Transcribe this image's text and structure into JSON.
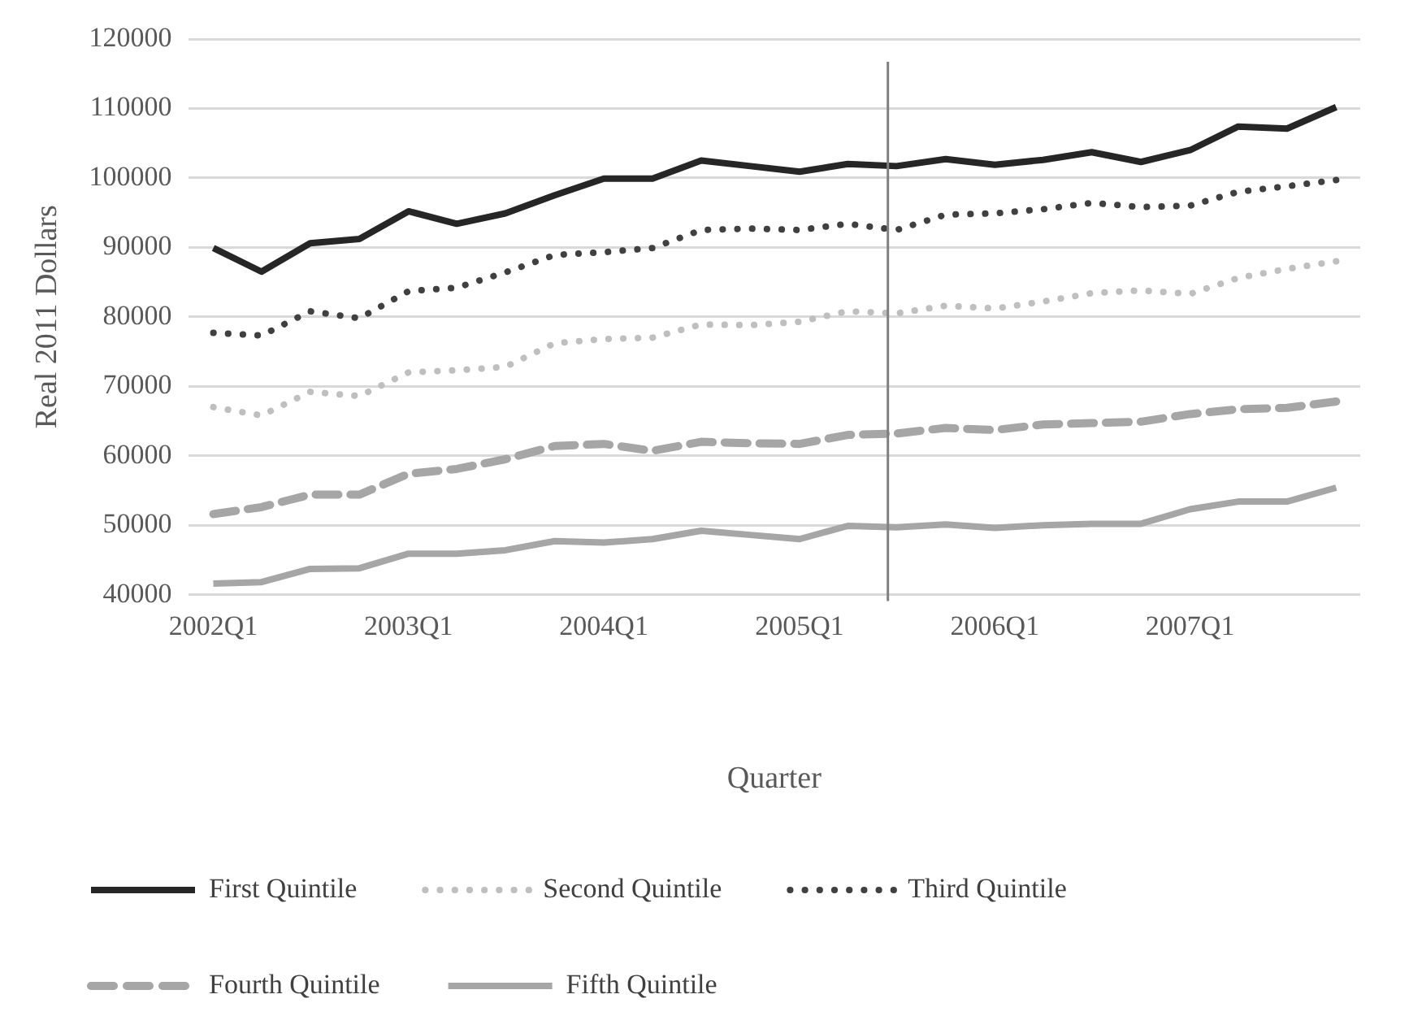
{
  "chart_data": {
    "type": "line",
    "xlabel": "Quarter",
    "ylabel": "Real 2011 Dollars",
    "x": [
      "2002-01",
      "2002-04",
      "2002-07",
      "2002-10",
      "2003-01",
      "2003-04",
      "2003-07",
      "2003-10",
      "2004-01",
      "2004-04",
      "2004-07",
      "2004-10",
      "2005-01",
      "2005-04",
      "2005-07",
      "2005-10",
      "2006-01",
      "2006-04",
      "2006-07",
      "2006-10",
      "2007-01",
      "2007-04",
      "2007-07",
      "2007-10"
    ],
    "xlim": [
      "2001-11-15",
      "2007-11-15"
    ],
    "xticks": [
      {
        "value": "2002-01",
        "label": "2002Q1"
      },
      {
        "value": "2003-01",
        "label": "2003Q1"
      },
      {
        "value": "2004-01",
        "label": "2004Q1"
      },
      {
        "value": "2005-01",
        "label": "2005Q1"
      },
      {
        "value": "2006-01",
        "label": "2006Q1"
      },
      {
        "value": "2007-01",
        "label": "2007Q1"
      }
    ],
    "ylim": [
      40000,
      120000
    ],
    "yticks": [
      40000,
      50000,
      60000,
      70000,
      80000,
      90000,
      100000,
      110000,
      120000
    ],
    "grid": "y",
    "legend": "bottom",
    "marker": "none",
    "series": [
      {
        "name": "First Quintile",
        "color": "#262626",
        "line_style": "solid",
        "values": [
          89900,
          86500,
          90600,
          91200,
          95200,
          93400,
          94900,
          97500,
          99900,
          99900,
          102500,
          101700,
          100900,
          102000,
          101700,
          102700,
          101900,
          102600,
          103700,
          102300,
          104000,
          107400,
          107100,
          110200
        ]
      },
      {
        "name": "Second Quintile",
        "color": "#bfbfbf",
        "line_style": "dotted",
        "values": [
          67000,
          65800,
          69200,
          68600,
          72000,
          72300,
          72800,
          76200,
          76800,
          77000,
          78900,
          78800,
          79300,
          80800,
          80500,
          81600,
          81200,
          82200,
          83400,
          83800,
          83300,
          85600,
          86900,
          88000
        ]
      },
      {
        "name": "Third Quintile",
        "color": "#404040",
        "line_style": "dotted",
        "values": [
          77700,
          77300,
          80800,
          79800,
          83700,
          84200,
          86400,
          88900,
          89300,
          89900,
          92500,
          92700,
          92500,
          93400,
          92500,
          94700,
          94900,
          95500,
          96400,
          95800,
          96000,
          98000,
          98800,
          99700
        ]
      },
      {
        "name": "Fourth Quintile",
        "color": "#a6a6a6",
        "line_style": "dashed",
        "values": [
          51600,
          52600,
          54400,
          54400,
          57400,
          58100,
          59500,
          61400,
          61700,
          60700,
          62000,
          61800,
          61700,
          63000,
          63200,
          64000,
          63700,
          64500,
          64700,
          64900,
          66000,
          66700,
          66900,
          67800
        ]
      },
      {
        "name": "Fifth Quintile",
        "color": "#a6a6a6",
        "line_style": "solid",
        "values": [
          41600,
          41800,
          43700,
          43800,
          45900,
          45900,
          46400,
          47700,
          47500,
          48000,
          49200,
          48600,
          48000,
          49900,
          49700,
          50100,
          49600,
          50000,
          50200,
          50200,
          52300,
          53400,
          53400,
          55400
        ]
      }
    ],
    "ref_lines": [
      {
        "axis": "x",
        "value": "2005-06-15",
        "color": "#808080"
      }
    ]
  }
}
